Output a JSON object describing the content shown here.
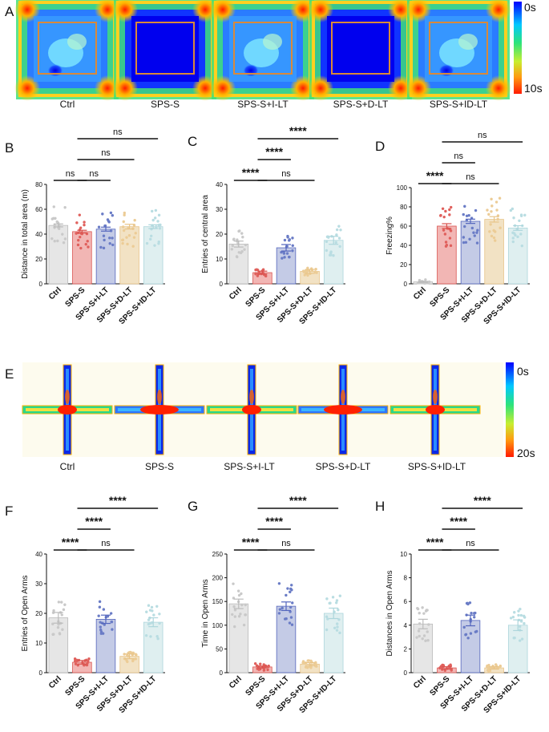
{
  "panels": {
    "A": {
      "label": "A",
      "groups": [
        "Ctrl",
        "SPS-S",
        "SPS-S+I-LT",
        "SPS-S+D-LT",
        "SPS-S+ID-LT"
      ],
      "colorbar": {
        "top": "0s",
        "bottom": "10s"
      }
    },
    "E": {
      "label": "E",
      "groups": [
        "Ctrl",
        "SPS-S",
        "SPS-S+I-LT",
        "SPS-S+D-LT",
        "SPS-S+ID-LT"
      ],
      "colorbar": {
        "top": "0s",
        "bottom": "20s"
      }
    }
  },
  "colors": {
    "group_fill": [
      "#e6e6e6",
      "#f2b6b4",
      "#c4cbe6",
      "#f2e2c4",
      "#dfeff0"
    ],
    "group_dot": [
      "#c9c9c9",
      "#e0605c",
      "#6a7cc6",
      "#eccc96",
      "#b9dde2"
    ],
    "group_edge": [
      "#bbbbbb",
      "#d9524e",
      "#5466bd",
      "#e8c488",
      "#add6dc"
    ]
  },
  "chart_data": [
    {
      "panel": "B",
      "type": "bar",
      "ylabel": "Distance in total area (m)",
      "categories": [
        "Ctrl",
        "SPS-S",
        "SPS-S+I-LT",
        "SPS-S+D-LT",
        "SPS-S+ID-LT"
      ],
      "values": [
        47,
        42,
        44,
        46,
        46
      ],
      "errors": [
        1.2,
        1.1,
        1.6,
        1.9,
        1.5
      ],
      "ylim": [
        0,
        80
      ],
      "yticks": [
        0,
        20,
        40,
        60,
        80
      ],
      "sig": [
        {
          "from": 0,
          "to": 1,
          "level": 0,
          "text": "ns"
        },
        {
          "from": 1,
          "to": 2,
          "level": 0,
          "text": "ns"
        },
        {
          "from": 1,
          "to": 3,
          "level": 1,
          "text": "ns"
        },
        {
          "from": 1,
          "to": 4,
          "level": 2,
          "text": "ns"
        }
      ]
    },
    {
      "panel": "C",
      "type": "bar",
      "ylabel": "Entries of central area",
      "categories": [
        "Ctrl",
        "SPS-S",
        "SPS-S+I-LT",
        "SPS-S+D-LT",
        "SPS-S+ID-LT"
      ],
      "values": [
        16,
        4.5,
        14.5,
        5,
        17.5
      ],
      "errors": [
        1.2,
        0.6,
        1.3,
        0.8,
        1.6
      ],
      "ylim": [
        0,
        40
      ],
      "yticks": [
        0,
        10,
        20,
        30,
        40
      ],
      "sig": [
        {
          "from": 0,
          "to": 1,
          "level": 0,
          "text": "****"
        },
        {
          "from": 1,
          "to": 3,
          "level": 0,
          "text": "ns"
        },
        {
          "from": 1,
          "to": 2,
          "level": 1,
          "text": "****"
        },
        {
          "from": 1,
          "to": 4,
          "level": 2,
          "text": "****"
        }
      ]
    },
    {
      "panel": "D",
      "type": "bar",
      "ylabel": "Freezing%",
      "categories": [
        "Ctrl",
        "SPS-S",
        "SPS-S+I-LT",
        "SPS-S+D-LT",
        "SPS-S+ID-LT"
      ],
      "values": [
        2,
        60,
        65,
        67,
        58
      ],
      "errors": [
        0.5,
        2.5,
        2.2,
        2.8,
        2.4
      ],
      "ylim": [
        0,
        100
      ],
      "yticks": [
        0,
        20,
        40,
        60,
        80,
        100
      ],
      "sig": [
        {
          "from": 0,
          "to": 1,
          "level": 0,
          "text": "****"
        },
        {
          "from": 1,
          "to": 3,
          "level": 0,
          "text": "ns"
        },
        {
          "from": 1,
          "to": 2,
          "level": 1,
          "text": "ns"
        },
        {
          "from": 1,
          "to": 4,
          "level": 2,
          "text": "ns"
        }
      ]
    },
    {
      "panel": "F",
      "type": "bar",
      "ylabel": "Entries of Open Arms",
      "categories": [
        "Ctrl",
        "SPS-S",
        "SPS-S+I-LT",
        "SPS-S+D-LT",
        "SPS-S+ID-LT"
      ],
      "values": [
        18.5,
        3.5,
        18,
        5.5,
        17
      ],
      "errors": [
        1.8,
        0.6,
        1.4,
        0.8,
        1.5
      ],
      "ylim": [
        0,
        40
      ],
      "yticks": [
        0,
        10,
        20,
        30,
        40
      ],
      "sig": [
        {
          "from": 0,
          "to": 1,
          "level": 0,
          "text": "****"
        },
        {
          "from": 1,
          "to": 3,
          "level": 0,
          "text": "ns"
        },
        {
          "from": 1,
          "to": 2,
          "level": 1,
          "text": "****"
        },
        {
          "from": 1,
          "to": 4,
          "level": 2,
          "text": "****"
        }
      ]
    },
    {
      "panel": "G",
      "type": "bar",
      "ylabel": "Time in Open Arms",
      "categories": [
        "Ctrl",
        "SPS-S",
        "SPS-S+I-LT",
        "SPS-S+D-LT",
        "SPS-S+ID-LT"
      ],
      "values": [
        145,
        12,
        140,
        18,
        125
      ],
      "errors": [
        10,
        2,
        9,
        3,
        11
      ],
      "ylim": [
        0,
        250
      ],
      "yticks": [
        0,
        50,
        100,
        150,
        200,
        250
      ],
      "sig": [
        {
          "from": 0,
          "to": 1,
          "level": 0,
          "text": "****"
        },
        {
          "from": 1,
          "to": 3,
          "level": 0,
          "text": "ns"
        },
        {
          "from": 1,
          "to": 2,
          "level": 1,
          "text": "****"
        },
        {
          "from": 1,
          "to": 4,
          "level": 2,
          "text": "****"
        }
      ]
    },
    {
      "panel": "H",
      "type": "bar",
      "ylabel": "Distances in Open Arms",
      "categories": [
        "Ctrl",
        "SPS-S",
        "SPS-S+I-LT",
        "SPS-S+D-LT",
        "SPS-S+ID-LT"
      ],
      "values": [
        4.1,
        0.4,
        4.4,
        0.4,
        4.0
      ],
      "errors": [
        0.4,
        0.1,
        0.45,
        0.1,
        0.45
      ],
      "ylim": [
        0,
        10
      ],
      "yticks": [
        0,
        2,
        4,
        6,
        8,
        10
      ],
      "sig": [
        {
          "from": 0,
          "to": 1,
          "level": 0,
          "text": "****"
        },
        {
          "from": 1,
          "to": 3,
          "level": 0,
          "text": "ns"
        },
        {
          "from": 1,
          "to": 2,
          "level": 1,
          "text": "****"
        },
        {
          "from": 1,
          "to": 4,
          "level": 2,
          "text": "****"
        }
      ]
    }
  ]
}
